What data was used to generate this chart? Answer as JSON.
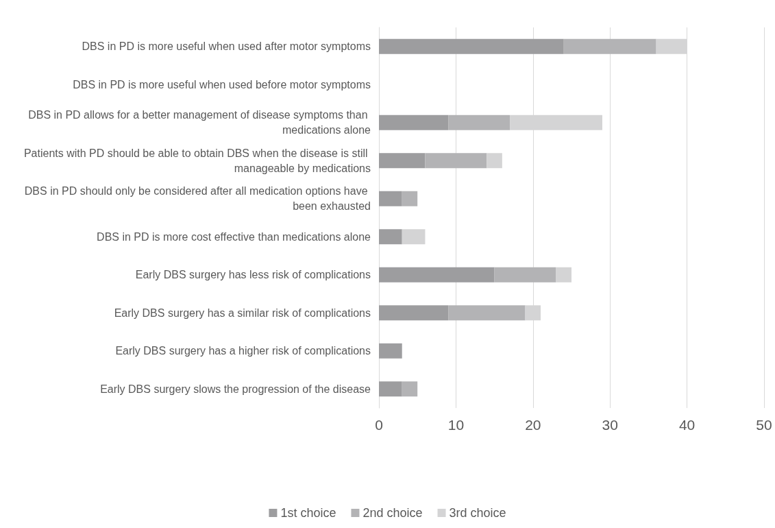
{
  "chart_data": {
    "type": "bar",
    "orientation": "horizontal",
    "stacked": true,
    "categories": [
      "DBS in PD is more useful when used after motor symptoms",
      "DBS in PD is more useful when used before motor symptoms",
      "DBS in PD allows for a better management of disease symptoms than medications alone",
      "Patients with PD should be able to obtain DBS when the disease is still manageable by medications",
      "DBS in PD should only be considered after all medication options have been exhausted",
      "DBS in PD is more cost effective than medications alone",
      "Early DBS surgery has less risk of complications",
      "Early DBS surgery has a similar risk of complications",
      "Early DBS surgery has a higher risk of complications",
      "Early DBS surgery slows the progression of the disease"
    ],
    "series": [
      {
        "name": "1st choice",
        "color": "#9d9d9f",
        "values": [
          24,
          0,
          9,
          6,
          3,
          3,
          15,
          9,
          3,
          3
        ]
      },
      {
        "name": "2nd choice",
        "color": "#b3b3b5",
        "values": [
          12,
          0,
          8,
          8,
          2,
          0,
          8,
          10,
          0,
          2
        ]
      },
      {
        "name": "3rd choice",
        "color": "#d4d4d5",
        "values": [
          4,
          0,
          12,
          2,
          0,
          3,
          2,
          2,
          0,
          0
        ]
      }
    ],
    "xlim": [
      0,
      50
    ],
    "xticks": [
      0,
      10,
      20,
      30,
      40,
      50
    ],
    "grid": "x",
    "legend": "bottom"
  }
}
